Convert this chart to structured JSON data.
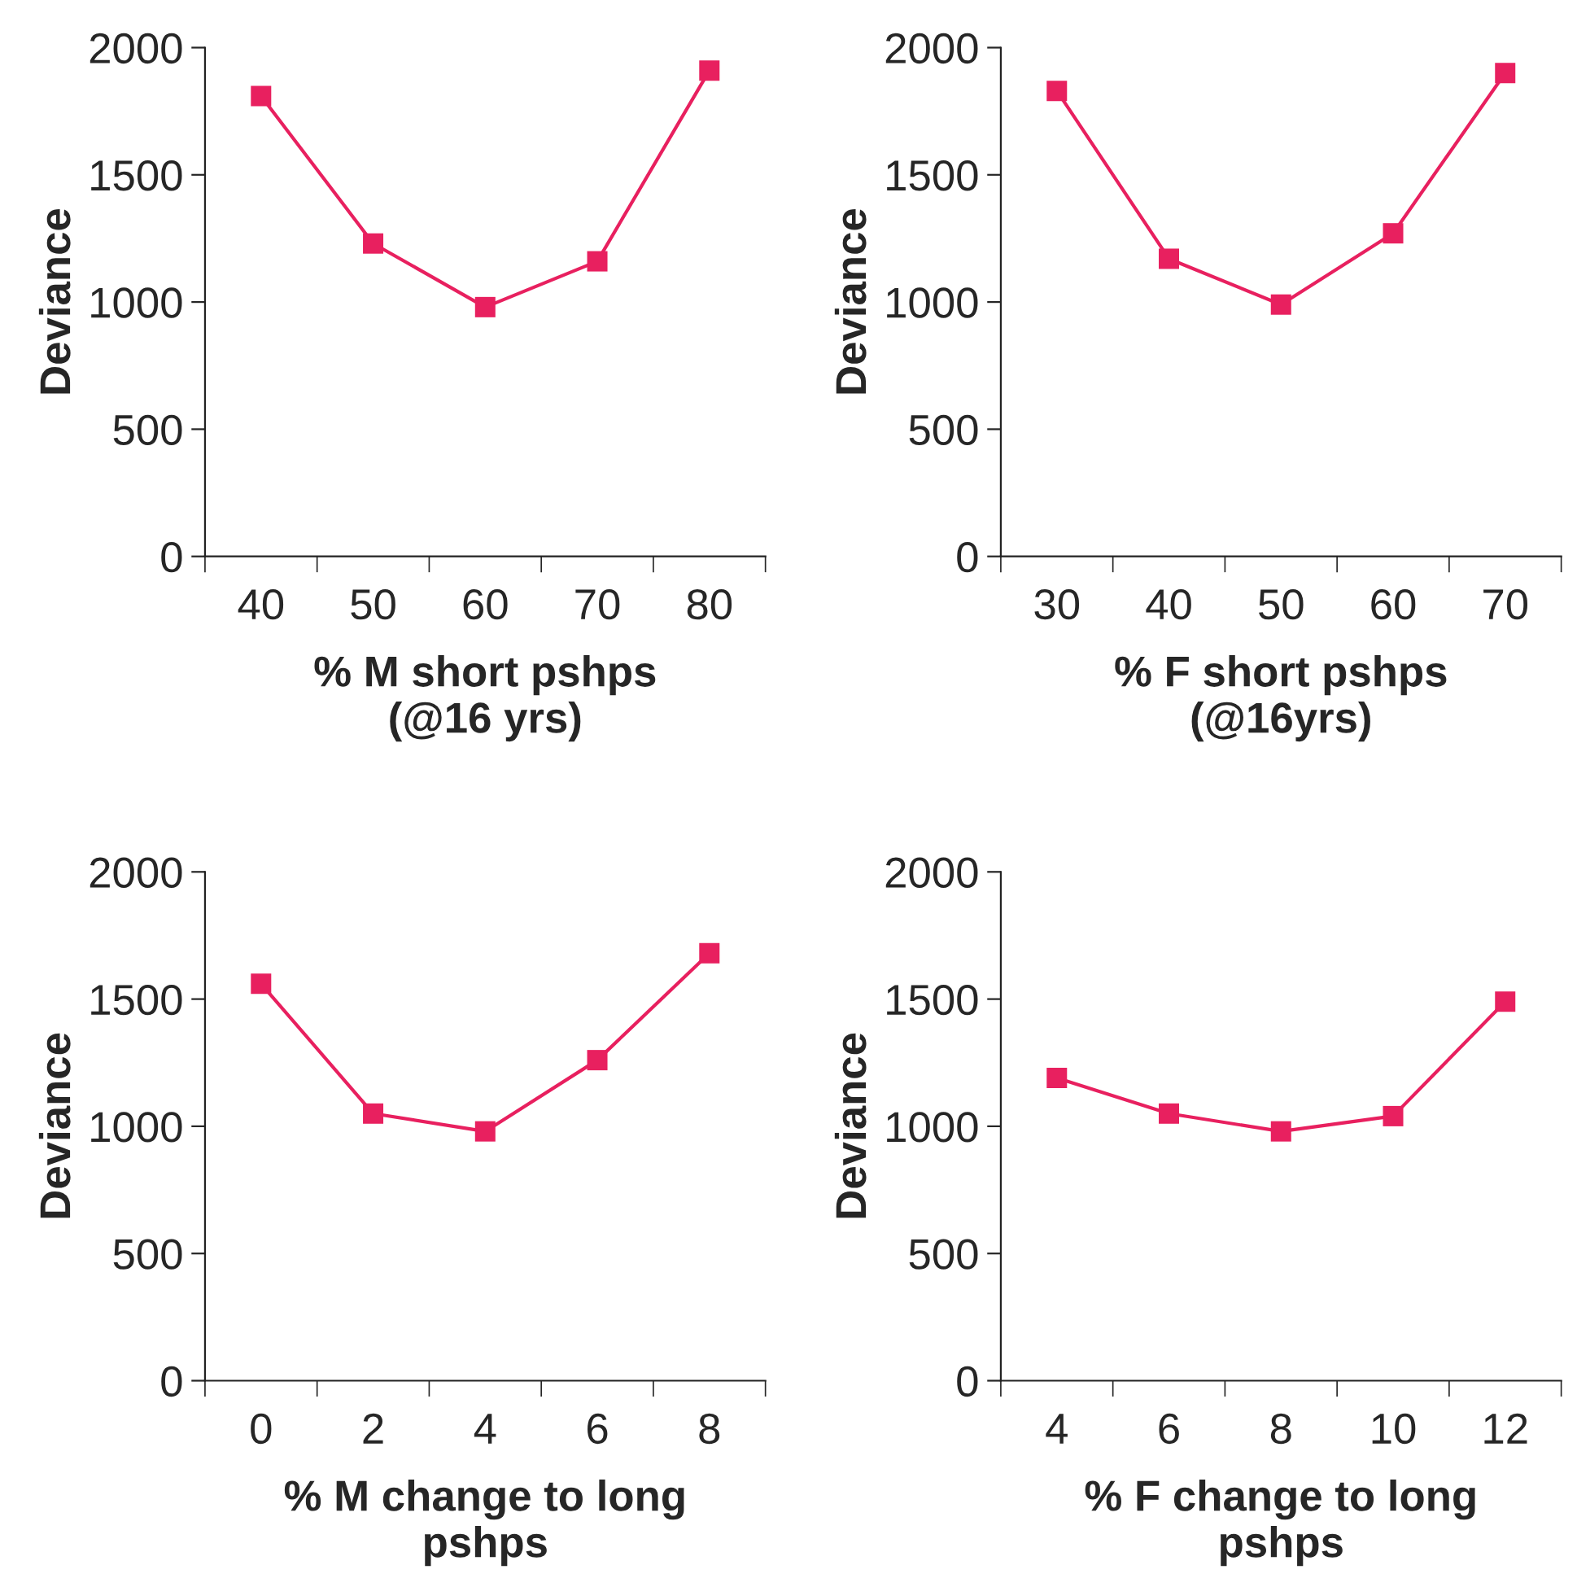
{
  "chart_data": [
    {
      "type": "line",
      "xlabel": "% M short pshps\n(@16 yrs)",
      "ylabel": "Deviance",
      "categories": [
        "40",
        "50",
        "60",
        "70",
        "80"
      ],
      "series": [
        {
          "color": "#e8205f",
          "values": [
            1810,
            1230,
            980,
            1160,
            1910
          ]
        }
      ],
      "ylim": [
        0,
        2000
      ],
      "yticks": [
        0,
        500,
        1000,
        1500,
        2000
      ],
      "marker": "square",
      "line_style": "solid",
      "grid": false
    },
    {
      "type": "line",
      "xlabel": "% F short pshps\n(@16yrs)",
      "ylabel": "Deviance",
      "categories": [
        "30",
        "40",
        "50",
        "60",
        "70"
      ],
      "series": [
        {
          "color": "#e8205f",
          "values": [
            1830,
            1170,
            990,
            1270,
            1900
          ]
        }
      ],
      "ylim": [
        0,
        2000
      ],
      "yticks": [
        0,
        500,
        1000,
        1500,
        2000
      ],
      "marker": "square",
      "line_style": "solid",
      "grid": false
    },
    {
      "type": "line",
      "xlabel": "% M change to long\npshps",
      "ylabel": "Deviance",
      "categories": [
        "0",
        "2",
        "4",
        "6",
        "8"
      ],
      "series": [
        {
          "color": "#e8205f",
          "values": [
            1560,
            1050,
            980,
            1260,
            1680
          ]
        }
      ],
      "ylim": [
        0,
        2000
      ],
      "yticks": [
        0,
        500,
        1000,
        1500,
        2000
      ],
      "marker": "square",
      "line_style": "solid",
      "grid": false
    },
    {
      "type": "line",
      "xlabel": "% F change to long\npshps",
      "ylabel": "Deviance",
      "categories": [
        "4",
        "6",
        "8",
        "10",
        "12"
      ],
      "series": [
        {
          "color": "#e8205f",
          "values": [
            1190,
            1050,
            980,
            1040,
            1490
          ]
        }
      ],
      "ylim": [
        0,
        2000
      ],
      "yticks": [
        0,
        500,
        1000,
        1500,
        2000
      ],
      "marker": "square",
      "line_style": "solid",
      "grid": false
    }
  ]
}
